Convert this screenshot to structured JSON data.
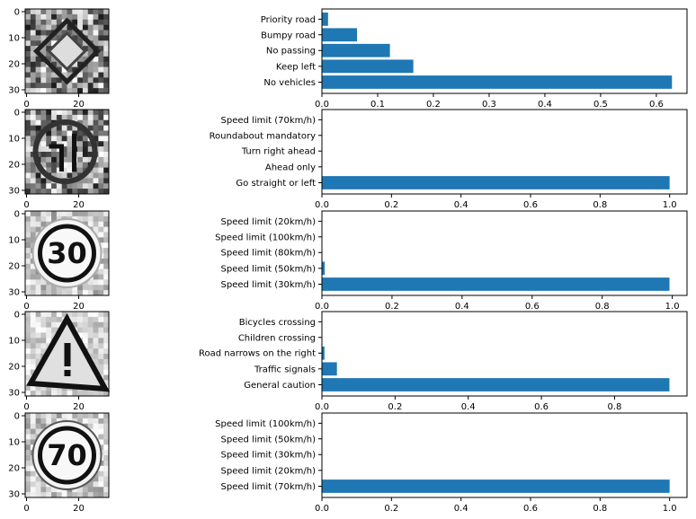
{
  "colors": {
    "bar": "#1f77b4",
    "axes": "#000000",
    "background": "#ffffff"
  },
  "image_axes": {
    "x_ticks": [
      "0",
      "20"
    ],
    "y_ticks": [
      "0",
      "10",
      "20",
      "30"
    ],
    "images": [
      {
        "depicts": "noisy-yield-style-diamond-sign"
      },
      {
        "depicts": "noisy-round-mandatory-sign"
      },
      {
        "depicts": "speed-limit-30-sign"
      },
      {
        "depicts": "triangular-general-caution-sign"
      },
      {
        "depicts": "speed-limit-70-sign"
      }
    ]
  },
  "chart_data": [
    {
      "type": "bar",
      "orientation": "horizontal",
      "categories": [
        "Priority road",
        "Bumpy road",
        "No passing",
        "Keep left",
        "No vehicles"
      ],
      "values": [
        0.011,
        0.063,
        0.122,
        0.164,
        0.628
      ],
      "xlim": [
        0,
        0.655
      ],
      "xticks": [
        "0.0",
        "0.1",
        "0.2",
        "0.3",
        "0.4",
        "0.5",
        "0.6"
      ],
      "tickvals": [
        0,
        0.1,
        0.2,
        0.3,
        0.4,
        0.5,
        0.6
      ],
      "grid": false
    },
    {
      "type": "bar",
      "orientation": "horizontal",
      "categories": [
        "Speed limit (70km/h)",
        "Roundabout mandatory",
        "Turn right ahead",
        "Ahead only",
        "Go straight or left"
      ],
      "values": [
        0.0,
        0.0,
        0.0,
        0.0,
        1.0
      ],
      "xlim": [
        0,
        1.05
      ],
      "xticks": [
        "0.0",
        "0.2",
        "0.4",
        "0.6",
        "0.8",
        "1.0"
      ],
      "tickvals": [
        0,
        0.2,
        0.4,
        0.6,
        0.8,
        1.0
      ],
      "grid": false
    },
    {
      "type": "bar",
      "orientation": "horizontal",
      "categories": [
        "Speed limit (20km/h)",
        "Speed limit (100km/h)",
        "Speed limit (80km/h)",
        "Speed limit (50km/h)",
        "Speed limit (30km/h)"
      ],
      "values": [
        0.0,
        0.0,
        0.0,
        0.008,
        0.992
      ],
      "xlim": [
        0,
        1.042
      ],
      "xticks": [
        "0.0",
        "0.2",
        "0.4",
        "0.6",
        "0.8",
        "1.0"
      ],
      "tickvals": [
        0,
        0.2,
        0.4,
        0.6,
        0.8,
        1.0
      ],
      "grid": false
    },
    {
      "type": "bar",
      "orientation": "horizontal",
      "categories": [
        "Bicycles crossing",
        "Children crossing",
        "Road narrows on the right",
        "Traffic signals",
        "General caution"
      ],
      "values": [
        0.0,
        0.0,
        0.007,
        0.041,
        0.95
      ],
      "xlim": [
        0,
        0.998
      ],
      "xticks": [
        "0.0",
        "0.2",
        "0.4",
        "0.6",
        "0.8"
      ],
      "tickvals": [
        0,
        0.2,
        0.4,
        0.6,
        0.8
      ],
      "grid": false
    },
    {
      "type": "bar",
      "orientation": "horizontal",
      "categories": [
        "Speed limit (100km/h)",
        "Speed limit (50km/h)",
        "Speed limit (30km/h)",
        "Speed limit (20km/h)",
        "Speed limit (70km/h)"
      ],
      "values": [
        0.0,
        0.0,
        0.0,
        0.0,
        1.0
      ],
      "xlim": [
        0,
        1.05
      ],
      "xticks": [
        "0.0",
        "0.2",
        "0.4",
        "0.6",
        "0.8",
        "1.0"
      ],
      "tickvals": [
        0,
        0.2,
        0.4,
        0.6,
        0.8,
        1.0
      ],
      "grid": false
    }
  ]
}
